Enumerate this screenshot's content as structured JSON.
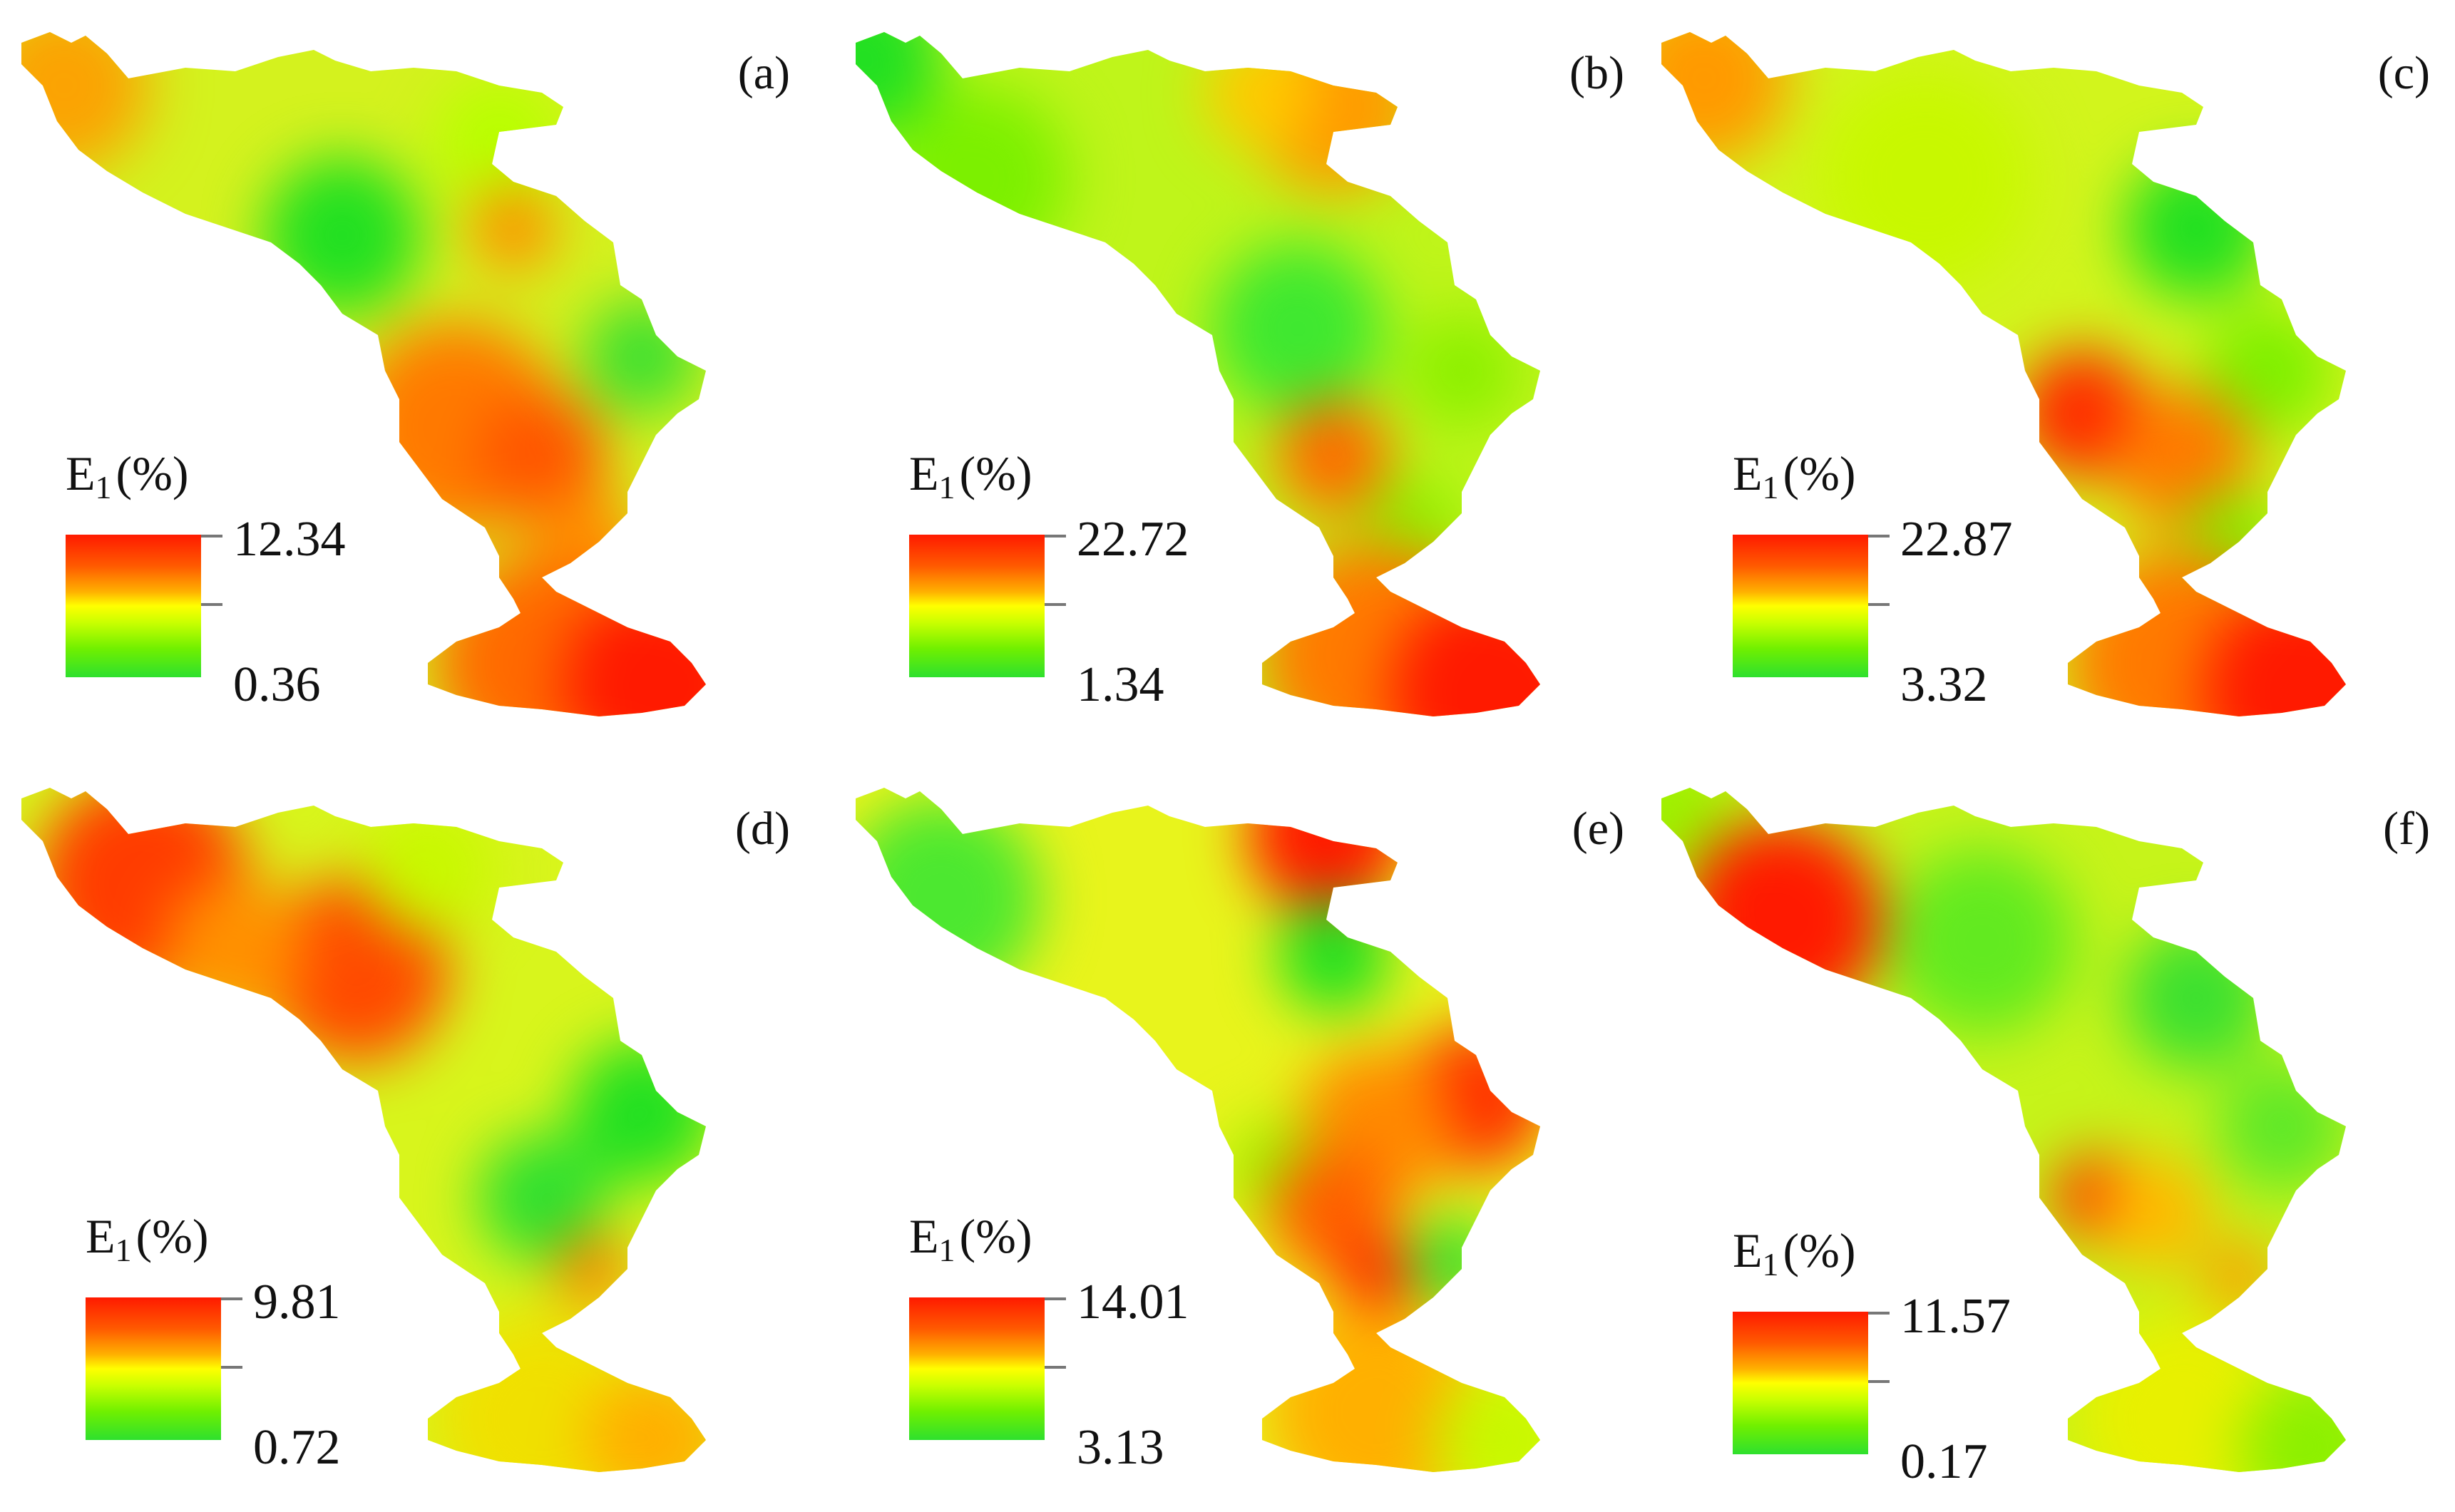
{
  "panels": [
    {
      "label": "(a)",
      "legend": {
        "title_main": "E",
        "title_sub": "1",
        "title_unit": "(%)",
        "max": "12.34",
        "min": "0.36"
      }
    },
    {
      "label": "(b)",
      "legend": {
        "title_main": "E",
        "title_sub": "1",
        "title_unit": "(%)",
        "max": "22.72",
        "min": "1.34"
      }
    },
    {
      "label": "(c)",
      "legend": {
        "title_main": "E",
        "title_sub": "1",
        "title_unit": "(%)",
        "max": "22.87",
        "min": "3.32"
      }
    },
    {
      "label": "(d)",
      "legend": {
        "title_main": "E",
        "title_sub": "1",
        "title_unit": "(%)",
        "max": "9.81",
        "min": "0.72"
      }
    },
    {
      "label": "(e)",
      "legend": {
        "title_main": "E",
        "title_sub": "1",
        "title_unit": "(%)",
        "max": "14.01",
        "min": "3.13"
      }
    },
    {
      "label": "(f)",
      "legend": {
        "title_main": "E",
        "title_sub": "1",
        "title_unit": "(%)",
        "max": "11.57",
        "min": "0.17"
      }
    }
  ],
  "colors": {
    "high": "#ff1a00",
    "mid_high": "#ff8c00",
    "mid": "#ffff00",
    "low": "#2ee02e",
    "base": "#d4f21e"
  }
}
